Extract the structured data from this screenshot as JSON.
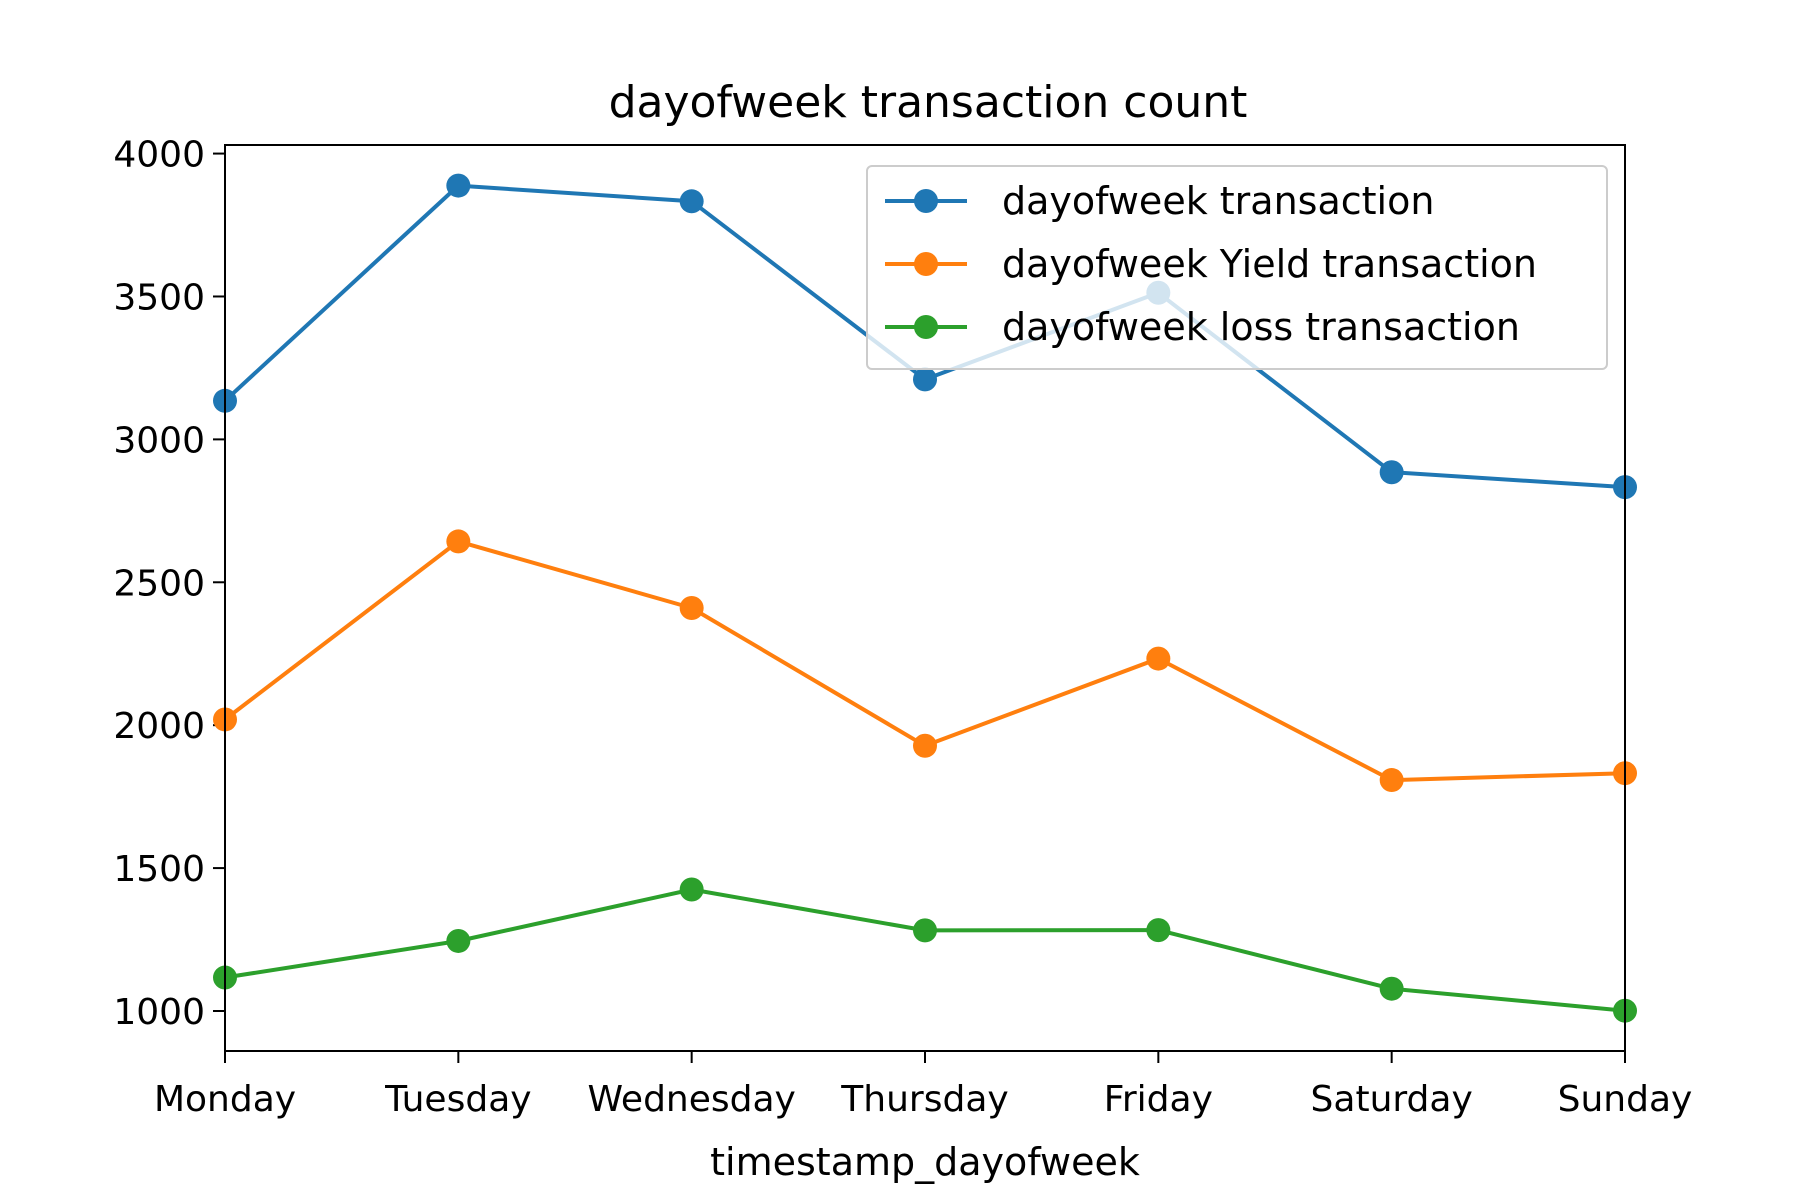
{
  "chart_data": {
    "type": "line",
    "title": "dayofweek transaction count",
    "xlabel": "timestamp_dayofweek",
    "ylabel": "",
    "categories": [
      "Monday",
      "Tuesday",
      "Wednesday",
      "Thursday",
      "Friday",
      "Saturday",
      "Sunday"
    ],
    "yticks": [
      1000,
      1500,
      2000,
      2500,
      3000,
      3500,
      4000
    ],
    "ylim": [
      860,
      4030
    ],
    "grid": false,
    "legend_position": "top-right",
    "series": [
      {
        "name": "dayofweek transaction",
        "color": "#1f77b4",
        "values": [
          3135,
          3888,
          3833,
          3210,
          3513,
          2885,
          2833
        ]
      },
      {
        "name": "dayofweek Yield transaction",
        "color": "#ff7f0e",
        "values": [
          2020,
          2643,
          2410,
          1928,
          2233,
          1808,
          1832
        ]
      },
      {
        "name": "dayofweek loss transaction",
        "color": "#2ca02c",
        "values": [
          1117,
          1245,
          1425,
          1282,
          1283,
          1078,
          1001
        ]
      }
    ]
  }
}
